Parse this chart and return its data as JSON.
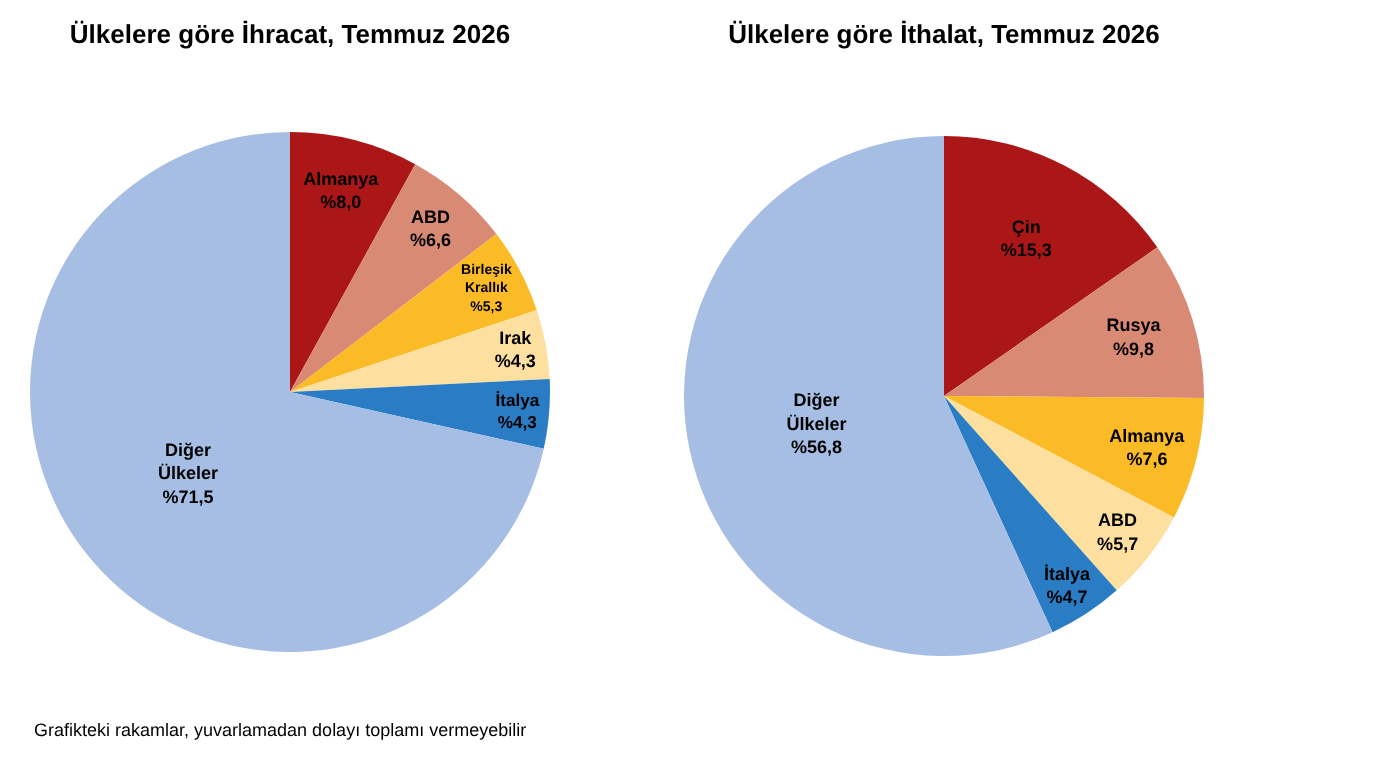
{
  "chart_data": [
    {
      "type": "pie",
      "title": "Ülkelere göre İhracat, Temmuz 2026",
      "categories": [
        "Almanya",
        "ABD",
        "Birleşik Krallık",
        "Irak",
        "İtalya",
        "Diğer Ülkeler"
      ],
      "values": [
        8.0,
        6.6,
        5.3,
        4.3,
        4.3,
        71.5
      ],
      "value_labels": [
        "%8,0",
        "%6,6",
        "%5,3",
        "%4,3",
        "%4,3",
        "%71,5"
      ],
      "colors": [
        "#ab1717",
        "#d98a74",
        "#fbbb27",
        "#fddfa0",
        "#2a7cc4",
        "#a6bee3"
      ],
      "annotations": [
        "Grafikteki rakamlar, yuvarlamadan dolayı toplamı vermeyebilir"
      ]
    },
    {
      "type": "pie",
      "title": "Ülkelere göre İthalat, Temmuz 2026",
      "categories": [
        "Çin",
        "Rusya",
        "Almanya",
        "ABD",
        "İtalya",
        "Diğer Ülkeler"
      ],
      "values": [
        15.3,
        9.8,
        7.6,
        5.7,
        4.7,
        56.8
      ],
      "value_labels": [
        "%15,3",
        "%9,8",
        "%7,6",
        "%5,7",
        "%4,7",
        "%56,8"
      ],
      "colors": [
        "#ab1717",
        "#d98a74",
        "#fbbb27",
        "#fddfa0",
        "#2a7cc4",
        "#a6bee3"
      ]
    }
  ]
}
